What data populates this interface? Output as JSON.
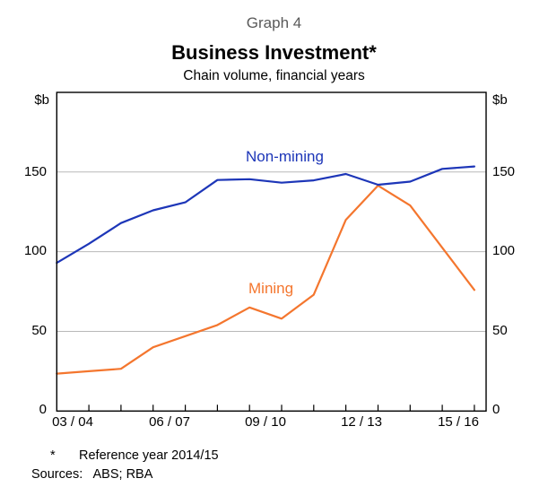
{
  "header": {
    "graph_number": "Graph 4",
    "title": "Business Investment*",
    "subtitle": "Chain volume, financial years"
  },
  "y_axis": {
    "unit": "$b",
    "tick_labels": [
      "150",
      "100",
      "50",
      "0"
    ]
  },
  "x_axis": {
    "tick_labels": [
      "03 / 04",
      "06 / 07",
      "09 / 10",
      "12 / 13",
      "15 / 16"
    ]
  },
  "series_annotations": {
    "non_mining": "Non-mining",
    "mining": "Mining"
  },
  "footnotes": {
    "marker": "*",
    "note": "Reference year 2014/15",
    "sources": "Sources:   ABS; RBA"
  },
  "colors": {
    "non_mining": "#1d36b8",
    "mining": "#f4762e",
    "gridline": "#b8b8b8",
    "axis": "#000000",
    "graph_number_text": "#5a5a5a"
  },
  "chart_data": {
    "type": "line",
    "title": "Business Investment*",
    "subtitle": "Chain volume, financial years",
    "unit": "$b",
    "ylim": [
      0,
      200
    ],
    "y_gridlines": [
      50,
      100,
      150
    ],
    "y_labeled_values": [
      0,
      50,
      100,
      150
    ],
    "grid": "horizontal-only",
    "legend_position": "inline-labels",
    "x_tick_labels": [
      "03 / 04",
      "06 / 07",
      "09 / 10",
      "12 / 13",
      "15 / 16"
    ],
    "years": [
      "02/03",
      "03/04",
      "04/05",
      "05/06",
      "06/07",
      "07/08",
      "08/09",
      "09/10",
      "10/11",
      "11/12",
      "12/13",
      "13/14",
      "14/15",
      "15/16"
    ],
    "series": [
      {
        "name": "Non-mining",
        "color": "#1d36b8",
        "values": [
          93,
          105,
          118,
          126,
          131,
          145,
          145.5,
          143.3,
          144.8,
          148.8,
          142,
          144,
          152,
          153.5
        ]
      },
      {
        "name": "Mining",
        "color": "#f4762e",
        "values": [
          23.5,
          25,
          26.5,
          40,
          47,
          54,
          65,
          58,
          73,
          120,
          141.5,
          129,
          102.5,
          76
        ]
      }
    ]
  }
}
